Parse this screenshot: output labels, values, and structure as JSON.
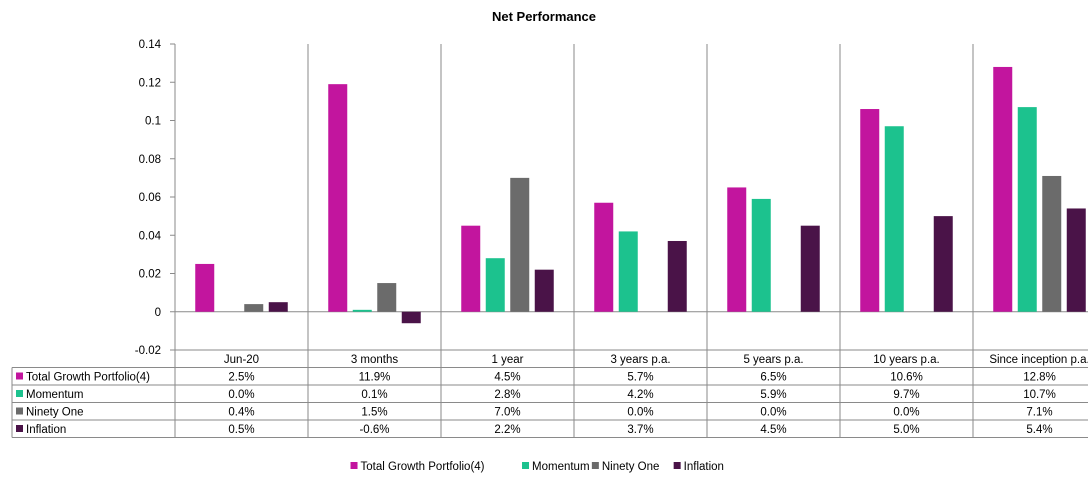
{
  "chart_data": {
    "type": "bar",
    "title": "Net Performance",
    "categories": [
      "Jun-20",
      "3 months",
      "1 year",
      "3 years p.a.",
      "5 years p.a.",
      "10 years p.a.",
      "Since inception p.a."
    ],
    "ylim": [
      -0.02,
      0.14
    ],
    "yticks": [
      "0.14",
      "0.12",
      "0.1",
      "0.08",
      "0.06",
      "0.04",
      "0.02",
      "0",
      "-0.02"
    ],
    "ytick_values": [
      0.14,
      0.12,
      0.1,
      0.08,
      0.06,
      0.04,
      0.02,
      0,
      -0.02
    ],
    "grid": "vertical category separators",
    "legend_position": "bottom",
    "series": [
      {
        "name": "Total Growth Portfolio(4)",
        "color": "#c2159e",
        "values": [
          0.025,
          0.119,
          0.045,
          0.057,
          0.065,
          0.106,
          0.128
        ],
        "labels": [
          "2.5%",
          "11.9%",
          "4.5%",
          "5.7%",
          "6.5%",
          "10.6%",
          "12.8%"
        ]
      },
      {
        "name": "Momentum",
        "color": "#1cc28e",
        "values": [
          0.0,
          0.001,
          0.028,
          0.042,
          0.059,
          0.097,
          0.107
        ],
        "labels": [
          "0.0%",
          "0.1%",
          "2.8%",
          "4.2%",
          "5.9%",
          "9.7%",
          "10.7%"
        ]
      },
      {
        "name": "Ninety One",
        "color": "#6b6b6b",
        "values": [
          0.004,
          0.015,
          0.07,
          0.0,
          0.0,
          0.0,
          0.071
        ],
        "labels": [
          "0.4%",
          "1.5%",
          "7.0%",
          "0.0%",
          "0.0%",
          "0.0%",
          "7.1%"
        ]
      },
      {
        "name": "Inflation",
        "color": "#4a1348",
        "values": [
          0.005,
          -0.006,
          0.022,
          0.037,
          0.045,
          0.05,
          0.054
        ],
        "labels": [
          "0.5%",
          "-0.6%",
          "2.2%",
          "3.7%",
          "4.5%",
          "5.0%",
          "5.4%"
        ]
      }
    ]
  }
}
